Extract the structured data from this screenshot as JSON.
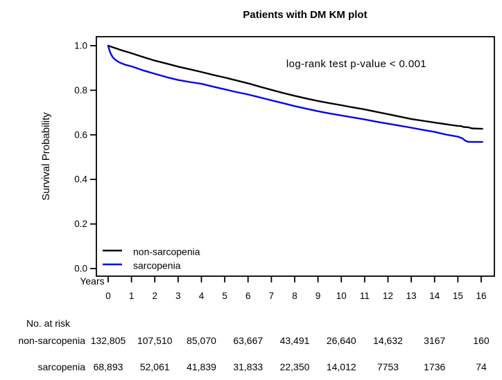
{
  "title": "Patients with DM KM plot",
  "chart_data": {
    "type": "line",
    "title": "Patients with DM KM plot",
    "xlabel": "Years",
    "ylabel": "Survival Probability",
    "xlim": [
      0,
      16
    ],
    "ylim": [
      0.0,
      1.0
    ],
    "grid": false,
    "legend_position": "bottom-left-inside",
    "x_ticks": [
      "0",
      "1",
      "2",
      "3",
      "4",
      "5",
      "6",
      "7",
      "8",
      "9",
      "10",
      "11",
      "12",
      "13",
      "14",
      "15",
      "16"
    ],
    "x_tick_values": [
      0,
      1,
      2,
      3,
      4,
      5,
      6,
      7,
      8,
      9,
      10,
      11,
      12,
      13,
      14,
      15,
      16
    ],
    "y_ticks": [
      "1.0",
      "0.8",
      "0.6",
      "0.4",
      "0.2",
      "0.0"
    ],
    "y_tick_values": [
      1.0,
      0.8,
      0.6,
      0.4,
      0.2,
      0.0
    ],
    "annotation": "log-rank test p-value < 0.001",
    "annotation_color": "#ff0000",
    "series": [
      {
        "name": "non-sarcopenia",
        "color": "#000000",
        "points": [
          [
            0,
            1.0
          ],
          [
            0.5,
            0.982
          ],
          [
            1,
            0.966
          ],
          [
            1.5,
            0.949
          ],
          [
            2,
            0.933
          ],
          [
            2.5,
            0.92
          ],
          [
            3,
            0.906
          ],
          [
            3.5,
            0.894
          ],
          [
            4,
            0.882
          ],
          [
            4.5,
            0.869
          ],
          [
            5,
            0.857
          ],
          [
            5.5,
            0.844
          ],
          [
            6,
            0.831
          ],
          [
            6.5,
            0.816
          ],
          [
            7,
            0.802
          ],
          [
            7.5,
            0.788
          ],
          [
            8,
            0.775
          ],
          [
            8.5,
            0.763
          ],
          [
            9,
            0.752
          ],
          [
            9.5,
            0.742
          ],
          [
            10,
            0.733
          ],
          [
            10.5,
            0.723
          ],
          [
            11,
            0.714
          ],
          [
            11.5,
            0.703
          ],
          [
            12,
            0.693
          ],
          [
            12.5,
            0.682
          ],
          [
            13,
            0.671
          ],
          [
            13.5,
            0.663
          ],
          [
            14,
            0.655
          ],
          [
            14.4,
            0.649
          ],
          [
            14.8,
            0.643
          ],
          [
            15,
            0.64
          ],
          [
            15.15,
            0.639
          ],
          [
            15.25,
            0.635
          ],
          [
            15.45,
            0.634
          ],
          [
            15.6,
            0.629
          ],
          [
            15.85,
            0.628
          ],
          [
            16.05,
            0.627
          ]
        ]
      },
      {
        "name": "sarcopenia",
        "color": "#0000ff",
        "points": [
          [
            0,
            1.0
          ],
          [
            0.04,
            0.985
          ],
          [
            0.08,
            0.972
          ],
          [
            0.13,
            0.96
          ],
          [
            0.2,
            0.948
          ],
          [
            0.3,
            0.937
          ],
          [
            0.4,
            0.93
          ],
          [
            0.5,
            0.924
          ],
          [
            0.75,
            0.914
          ],
          [
            1,
            0.907
          ],
          [
            1.25,
            0.898
          ],
          [
            1.5,
            0.889
          ],
          [
            2,
            0.874
          ],
          [
            2.5,
            0.859
          ],
          [
            3,
            0.846
          ],
          [
            3.5,
            0.837
          ],
          [
            4,
            0.829
          ],
          [
            4.5,
            0.816
          ],
          [
            5,
            0.804
          ],
          [
            5.5,
            0.792
          ],
          [
            6,
            0.781
          ],
          [
            6.5,
            0.768
          ],
          [
            7,
            0.755
          ],
          [
            7.5,
            0.742
          ],
          [
            8,
            0.729
          ],
          [
            8.5,
            0.717
          ],
          [
            9,
            0.706
          ],
          [
            9.5,
            0.696
          ],
          [
            10,
            0.687
          ],
          [
            10.5,
            0.678
          ],
          [
            11,
            0.669
          ],
          [
            11.5,
            0.659
          ],
          [
            12,
            0.65
          ],
          [
            12.5,
            0.641
          ],
          [
            13,
            0.632
          ],
          [
            13.5,
            0.622
          ],
          [
            14,
            0.613
          ],
          [
            14.5,
            0.601
          ],
          [
            15,
            0.592
          ],
          [
            15.2,
            0.584
          ],
          [
            15.3,
            0.575
          ],
          [
            15.42,
            0.569
          ],
          [
            15.6,
            0.568
          ],
          [
            16.05,
            0.568
          ]
        ]
      }
    ]
  },
  "legend": {
    "items": [
      {
        "label": "non-sarcopenia",
        "color": "#000000"
      },
      {
        "label": "sarcopenia",
        "color": "#0000ff"
      }
    ]
  },
  "risk_table": {
    "header": "No. at risk",
    "columns_years": [
      0,
      2,
      4,
      6,
      8,
      10,
      12,
      14,
      16
    ],
    "rows": [
      {
        "label": "non-sarcopenia",
        "color": "#000000",
        "values": [
          "132,805",
          "107,510",
          "85,070",
          "63,667",
          "43,491",
          "26,640",
          "14,632",
          "3167",
          "160"
        ]
      },
      {
        "label": "sarcopenia",
        "color": "#0000ff",
        "values": [
          "68,893",
          "52,061",
          "41,839",
          "31,833",
          "22,350",
          "14,012",
          "7753",
          "1736",
          "74"
        ]
      }
    ]
  }
}
